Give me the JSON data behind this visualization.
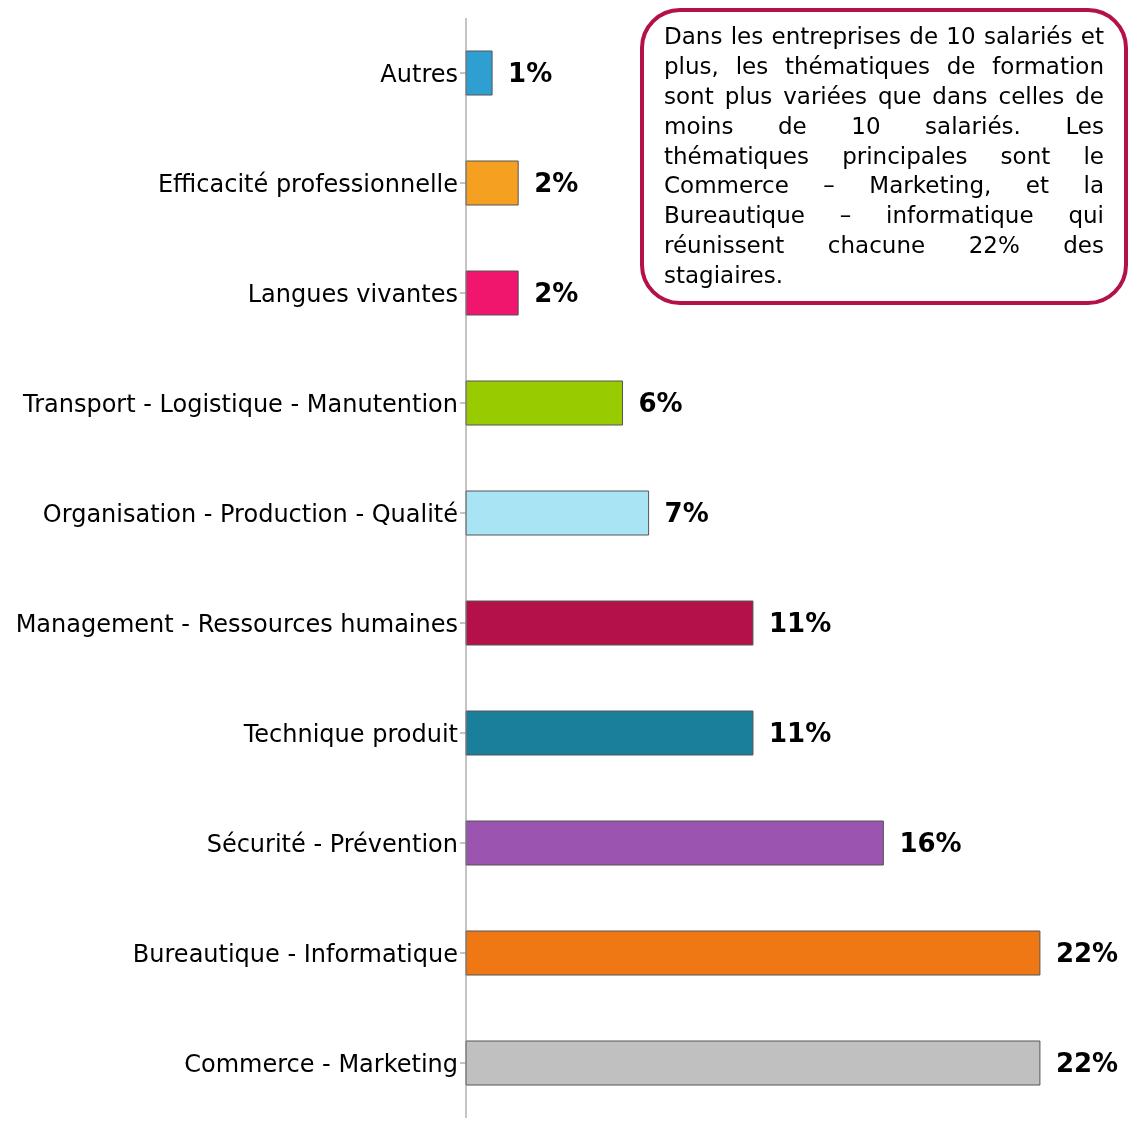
{
  "chart_data": {
    "type": "bar",
    "orientation": "horizontal",
    "categories": [
      "Autres",
      "Efficacité professionnelle",
      "Langues vivantes",
      "Transport - Logistique - Manutention",
      "Organisation - Production - Qualité",
      "Management - Ressources humaines",
      "Technique produit",
      "Sécurité - Prévention",
      "Bureautique - Informatique",
      "Commerce - Marketing"
    ],
    "values": [
      1,
      2,
      2,
      6,
      7,
      11,
      11,
      16,
      22,
      22
    ],
    "colors": [
      "#2e9fd0",
      "#f5a020",
      "#f0166e",
      "#99cc00",
      "#a8e4f4",
      "#b4104a",
      "#1a7f9a",
      "#9b55b0",
      "#f07814",
      "#c0c0c0"
    ],
    "value_labels": [
      "1%",
      "2%",
      "2%",
      "6%",
      "7%",
      "11%",
      "11%",
      "16%",
      "22%",
      "22%"
    ],
    "annotations": [
      "Dans les entreprises de 10 salariés et plus, les thématiques de formation sont plus variées que dans celles de moins de 10 salariés. Les thématiques principales sont le Commerce – Marketing, et la Bureautique – informatique qui réunissent chacune 22% des stagiaires."
    ],
    "data_labels": false
  }
}
